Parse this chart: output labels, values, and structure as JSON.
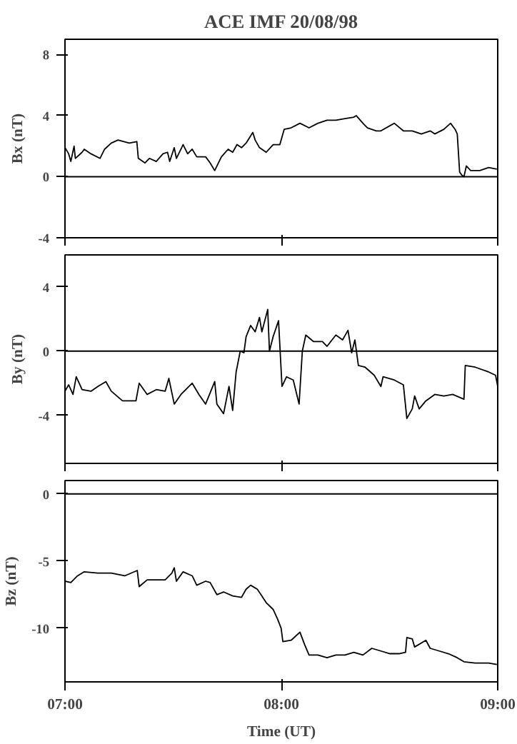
{
  "chart_data": [
    {
      "type": "line",
      "title": "ACE IMF 20/08/98",
      "ylabel": "Bx (nT)",
      "xlim": [
        7,
        9
      ],
      "xticks": [
        {
          "value": 7,
          "label": null
        },
        {
          "value": 8,
          "label": null
        },
        {
          "value": 9,
          "label": null
        }
      ],
      "ylim": [
        -4,
        9
      ],
      "yticks": [
        -4,
        0,
        4,
        8
      ],
      "tick_labels": "y",
      "ref_lines": [
        {
          "axis": "y",
          "value": 0,
          "color": "#000000"
        }
      ],
      "series": [
        {
          "color": "#000000",
          "x": [
            7.0,
            7.017,
            7.027,
            7.042,
            7.048,
            7.079,
            7.089,
            7.12,
            7.162,
            7.183,
            7.214,
            7.245,
            7.297,
            7.332,
            7.339,
            7.37,
            7.39,
            7.422,
            7.453,
            7.474,
            7.484,
            7.505,
            7.515,
            7.546,
            7.567,
            7.588,
            7.609,
            7.65,
            7.671,
            7.692,
            7.723,
            7.754,
            7.775,
            7.795,
            7.816,
            7.837,
            7.868,
            7.879,
            7.899,
            7.93,
            7.962,
            7.993,
            8.013,
            8.045,
            8.086,
            8.128,
            8.169,
            8.211,
            8.252,
            8.294,
            8.335,
            8.346,
            8.377,
            8.398,
            8.439,
            8.46,
            8.522,
            8.564,
            8.605,
            8.647,
            8.688,
            8.709,
            8.751,
            8.782,
            8.803,
            8.813,
            8.824,
            8.834,
            8.844,
            8.855,
            8.875,
            8.917,
            8.958,
            8.996
          ],
          "values": [
            1.9,
            1.5,
            1.0,
            2.0,
            1.2,
            1.6,
            1.8,
            1.5,
            1.2,
            1.8,
            2.2,
            2.4,
            2.2,
            2.3,
            1.2,
            0.9,
            1.2,
            1.0,
            1.5,
            1.6,
            1.0,
            1.9,
            1.2,
            2.1,
            1.5,
            1.8,
            1.3,
            1.3,
            0.9,
            0.4,
            1.3,
            1.8,
            1.6,
            2.1,
            1.9,
            2.2,
            2.9,
            2.4,
            1.9,
            1.6,
            2.1,
            2.1,
            3.1,
            3.2,
            3.5,
            3.2,
            3.5,
            3.7,
            3.7,
            3.8,
            3.9,
            4.0,
            3.5,
            3.2,
            3.0,
            3.0,
            3.5,
            3.0,
            3.0,
            2.8,
            3.0,
            2.8,
            3.1,
            3.5,
            3.1,
            2.8,
            0.3,
            0.1,
            0.0,
            0.7,
            0.4,
            0.4,
            0.6,
            0.5
          ]
        }
      ]
    },
    {
      "type": "line",
      "ylabel": "By (nT)",
      "xlim": [
        7,
        9
      ],
      "xticks": [
        {
          "value": 7,
          "label": null
        },
        {
          "value": 8,
          "label": null
        },
        {
          "value": 9,
          "label": null
        }
      ],
      "ylim": [
        -7,
        6
      ],
      "yticks": [
        -4,
        0,
        4
      ],
      "tick_labels": "y",
      "ref_lines": [
        {
          "axis": "y",
          "value": 0,
          "color": "#000000"
        }
      ],
      "series": [
        {
          "color": "#000000",
          "x": [
            7.0,
            7.017,
            7.037,
            7.052,
            7.079,
            7.12,
            7.152,
            7.189,
            7.214,
            7.266,
            7.328,
            7.343,
            7.38,
            7.422,
            7.463,
            7.48,
            7.505,
            7.536,
            7.588,
            7.619,
            7.65,
            7.692,
            7.702,
            7.733,
            7.758,
            7.775,
            7.791,
            7.81,
            7.827,
            7.837,
            7.858,
            7.879,
            7.899,
            7.91,
            7.937,
            7.945,
            7.962,
            7.987,
            8.003,
            8.024,
            8.055,
            8.082,
            8.097,
            8.113,
            8.148,
            8.19,
            8.211,
            8.252,
            8.283,
            8.308,
            8.325,
            8.34,
            8.356,
            8.387,
            8.429,
            8.46,
            8.47,
            8.522,
            8.564,
            8.58,
            8.605,
            8.616,
            8.637,
            8.668,
            8.709,
            8.751,
            8.792,
            8.844,
            8.85,
            8.896,
            8.958,
            8.99,
            9.0
          ],
          "values": [
            -2.5,
            -2.1,
            -2.7,
            -1.6,
            -2.4,
            -2.5,
            -2.2,
            -1.9,
            -2.5,
            -3.1,
            -3.1,
            -2.0,
            -2.7,
            -2.4,
            -2.5,
            -1.7,
            -3.3,
            -2.7,
            -2.0,
            -2.7,
            -3.3,
            -1.9,
            -3.3,
            -3.9,
            -2.2,
            -3.7,
            -1.3,
            0.0,
            -0.1,
            0.9,
            1.6,
            1.2,
            2.1,
            1.2,
            2.6,
            0.0,
            0.9,
            1.9,
            -2.2,
            -1.6,
            -1.8,
            -3.3,
            0.0,
            1.0,
            0.6,
            0.6,
            0.3,
            1.0,
            0.7,
            1.3,
            -0.1,
            0.7,
            -0.9,
            -1.0,
            -1.5,
            -2.2,
            -1.6,
            -1.8,
            -2.1,
            -4.2,
            -3.6,
            -2.8,
            -3.6,
            -3.1,
            -2.7,
            -2.8,
            -2.7,
            -3.0,
            -0.9,
            -1.0,
            -1.3,
            -1.5,
            -2.2
          ]
        }
      ]
    },
    {
      "type": "line",
      "ylabel": "Bz (nT)",
      "xlabel": "Time (UT)",
      "xlim": [
        7,
        9
      ],
      "xticks": [
        {
          "value": 7,
          "label": "07:00"
        },
        {
          "value": 8,
          "label": "08:00"
        },
        {
          "value": 9,
          "label": "09:00"
        }
      ],
      "ylim": [
        -14,
        1
      ],
      "yticks": [
        -10,
        -5,
        0
      ],
      "ref_lines": [
        {
          "axis": "y",
          "value": 0,
          "color": "#000000"
        }
      ],
      "series": [
        {
          "color": "#000000",
          "x": [
            7.0,
            7.027,
            7.058,
            7.089,
            7.152,
            7.214,
            7.276,
            7.334,
            7.343,
            7.38,
            7.422,
            7.463,
            7.494,
            7.505,
            7.515,
            7.546,
            7.588,
            7.609,
            7.65,
            7.671,
            7.702,
            7.733,
            7.775,
            7.816,
            7.837,
            7.858,
            7.889,
            7.91,
            7.93,
            7.962,
            7.982,
            7.999,
            8.007,
            8.045,
            8.086,
            8.107,
            8.128,
            8.169,
            8.211,
            8.252,
            8.294,
            8.335,
            8.377,
            8.418,
            8.46,
            8.502,
            8.543,
            8.574,
            8.58,
            8.605,
            8.616,
            8.668,
            8.688,
            8.73,
            8.772,
            8.813,
            8.844,
            8.896,
            8.958,
            8.996
          ],
          "values": [
            -6.5,
            -6.6,
            -6.1,
            -5.8,
            -5.9,
            -5.9,
            -6.1,
            -5.7,
            -6.9,
            -6.4,
            -6.4,
            -6.4,
            -5.9,
            -5.5,
            -6.5,
            -5.8,
            -6.1,
            -6.8,
            -6.5,
            -6.6,
            -7.5,
            -7.3,
            -7.6,
            -7.7,
            -7.1,
            -6.8,
            -7.1,
            -7.6,
            -8.1,
            -8.6,
            -9.3,
            -10.0,
            -11.0,
            -10.9,
            -10.3,
            -11.2,
            -12.0,
            -12.0,
            -12.2,
            -12.0,
            -12.0,
            -11.8,
            -12.0,
            -11.5,
            -11.7,
            -11.9,
            -11.9,
            -11.8,
            -10.7,
            -10.8,
            -11.4,
            -10.9,
            -11.5,
            -11.7,
            -11.9,
            -12.2,
            -12.5,
            -12.6,
            -12.6,
            -12.7
          ]
        }
      ]
    }
  ]
}
